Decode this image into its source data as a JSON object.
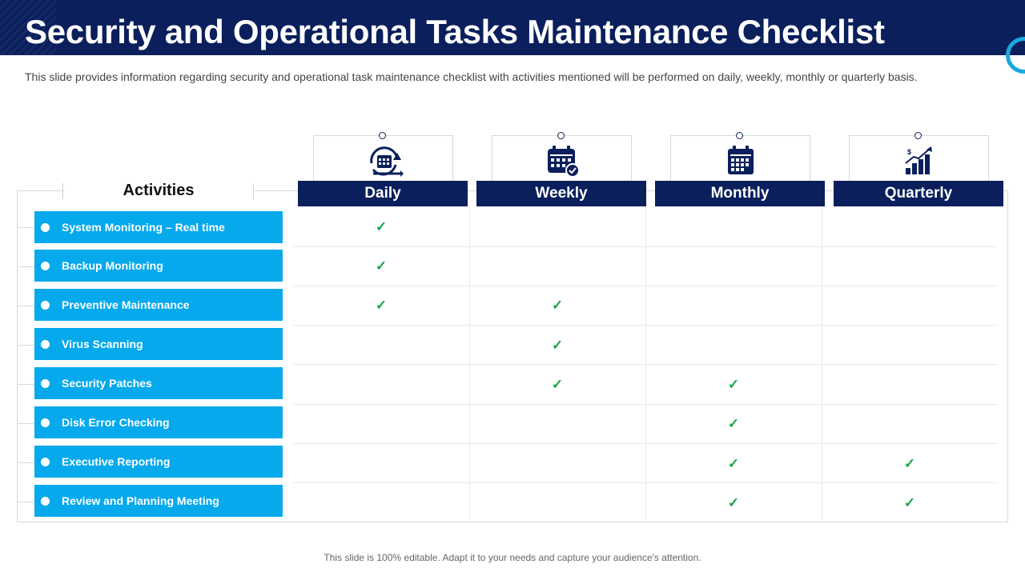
{
  "header": {
    "title": "Security and Operational Tasks Maintenance Checklist",
    "subtitle": "This slide provides information regarding security and operational task maintenance checklist  with activities mentioned will be performed on daily, weekly, monthly or quarterly basis."
  },
  "table": {
    "activities_heading": "Activities",
    "columns": [
      {
        "label": "Daily",
        "icon": "recurring-calendar-icon"
      },
      {
        "label": "Weekly",
        "icon": "calendar-check-icon"
      },
      {
        "label": "Monthly",
        "icon": "calendar-grid-icon"
      },
      {
        "label": "Quarterly",
        "icon": "growth-chart-icon"
      }
    ],
    "rows": [
      {
        "label": "System Monitoring – Real time",
        "checks": [
          true,
          false,
          false,
          false
        ]
      },
      {
        "label": "Backup Monitoring",
        "checks": [
          true,
          false,
          false,
          false
        ]
      },
      {
        "label": "Preventive Maintenance",
        "checks": [
          true,
          true,
          false,
          false
        ]
      },
      {
        "label": "Virus Scanning",
        "checks": [
          false,
          true,
          false,
          false
        ]
      },
      {
        "label": "Security Patches",
        "checks": [
          false,
          true,
          true,
          false
        ]
      },
      {
        "label": "Disk Error Checking",
        "checks": [
          false,
          false,
          true,
          false
        ]
      },
      {
        "label": "Executive Reporting",
        "checks": [
          false,
          false,
          true,
          true
        ]
      },
      {
        "label": "Review and Planning Meeting",
        "checks": [
          false,
          false,
          true,
          true
        ]
      }
    ],
    "check_mark": "✓"
  },
  "footer": {
    "note": "This slide is 100% editable. Adapt it to your needs and capture your audience's attention."
  },
  "colors": {
    "navy": "#0a1f5c",
    "activity_blue": "#05a9ec",
    "check_green": "#1aa34a",
    "accent_ring": "#1aa7e0"
  }
}
